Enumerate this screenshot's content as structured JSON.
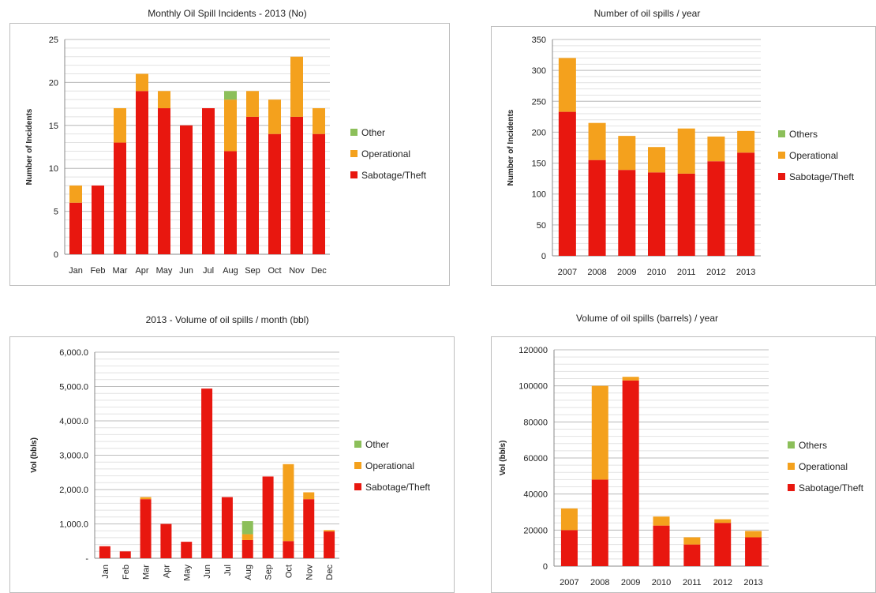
{
  "colors": {
    "sabotage": "#e8170f",
    "operational": "#f4a11d",
    "other": "#8cbf5a",
    "grid": "#d0d0d0"
  },
  "chart_data": [
    {
      "type": "bar",
      "stacked": true,
      "title": "Monthly Oil Spill Incidents - 2013 (No)",
      "ylabel": "Number of Incidents",
      "xlabel": "",
      "ylim": [
        0,
        25
      ],
      "yticks": [
        0,
        5,
        10,
        15,
        20,
        25
      ],
      "ytick_labels": [
        "0",
        "5",
        "10",
        "15",
        "20",
        "25"
      ],
      "categories": [
        "Jan",
        "Feb",
        "Mar",
        "Apr",
        "May",
        "Jun",
        "Jul",
        "Aug",
        "Sep",
        "Oct",
        "Nov",
        "Dec"
      ],
      "rotate_xticks": false,
      "legend": [
        "Other",
        "Operational",
        "Sabotage/Theft"
      ],
      "series": [
        {
          "name": "Sabotage/Theft",
          "values": [
            6,
            8,
            13,
            19,
            17,
            15,
            17,
            12,
            16,
            14,
            16,
            14
          ]
        },
        {
          "name": "Operational",
          "values": [
            2,
            0,
            4,
            2,
            2,
            0,
            0,
            6,
            3,
            4,
            7,
            3
          ]
        },
        {
          "name": "Other",
          "values": [
            0,
            0,
            0,
            0,
            0,
            0,
            0,
            1,
            0,
            0,
            0,
            0
          ]
        }
      ]
    },
    {
      "type": "bar",
      "stacked": true,
      "title": "Number of oil spills / year",
      "ylabel": "Number of Incidents",
      "xlabel": "",
      "ylim": [
        0,
        350
      ],
      "yticks": [
        0,
        50,
        100,
        150,
        200,
        250,
        300,
        350
      ],
      "ytick_labels": [
        "0",
        "50",
        "100",
        "150",
        "200",
        "250",
        "300",
        "350"
      ],
      "categories": [
        "2007",
        "2008",
        "2009",
        "2010",
        "2011",
        "2012",
        "2013"
      ],
      "rotate_xticks": false,
      "legend": [
        "Others",
        "Operational",
        "Sabotage/Theft"
      ],
      "series": [
        {
          "name": "Sabotage/Theft",
          "values": [
            233,
            155,
            139,
            135,
            133,
            153,
            167
          ]
        },
        {
          "name": "Operational",
          "values": [
            87,
            60,
            55,
            41,
            73,
            40,
            35
          ]
        },
        {
          "name": "Others",
          "values": [
            0,
            0,
            0,
            0,
            0,
            0,
            0
          ]
        }
      ]
    },
    {
      "type": "bar",
      "stacked": true,
      "title": "2013 - Volume of oil spills / month (bbl)",
      "ylabel": "Vol (bbls)",
      "xlabel": "",
      "ylim": [
        0,
        6000
      ],
      "yticks": [
        0,
        1000,
        2000,
        3000,
        4000,
        5000,
        6000
      ],
      "ytick_labels": [
        "-",
        "1,000.0",
        "2,000.0",
        "3,000.0",
        "4,000.0",
        "5,000.0",
        "6,000.0"
      ],
      "categories": [
        "Jan",
        "Feb",
        "Mar",
        "Apr",
        "May",
        "Jun",
        "Jul",
        "Aug",
        "Sep",
        "Oct",
        "Nov",
        "Dec"
      ],
      "rotate_xticks": true,
      "legend": [
        "Other",
        "Operational",
        "Sabotage/Theft"
      ],
      "series": [
        {
          "name": "Sabotage/Theft",
          "values": [
            350,
            200,
            1720,
            1000,
            480,
            4940,
            1780,
            530,
            2380,
            500,
            1720,
            780
          ]
        },
        {
          "name": "Operational",
          "values": [
            0,
            0,
            60,
            0,
            0,
            0,
            0,
            170,
            0,
            2240,
            200,
            40
          ]
        },
        {
          "name": "Other",
          "values": [
            0,
            0,
            0,
            0,
            0,
            0,
            0,
            380,
            0,
            0,
            0,
            0
          ]
        }
      ]
    },
    {
      "type": "bar",
      "stacked": true,
      "title": "Volume of oil spills (barrels) / year",
      "ylabel": "Vol (bbls)",
      "xlabel": "",
      "ylim": [
        0,
        120000
      ],
      "yticks": [
        0,
        20000,
        40000,
        60000,
        80000,
        100000,
        120000
      ],
      "ytick_labels": [
        "0",
        "20000",
        "40000",
        "60000",
        "80000",
        "100000",
        "120000"
      ],
      "categories": [
        "2007",
        "2008",
        "2009",
        "2010",
        "2011",
        "2012",
        "2013"
      ],
      "rotate_xticks": false,
      "legend": [
        "Others",
        "Operational",
        "Sabotage/Theft"
      ],
      "series": [
        {
          "name": "Sabotage/Theft",
          "values": [
            20000,
            48000,
            103000,
            22500,
            12000,
            24000,
            16000
          ]
        },
        {
          "name": "Operational",
          "values": [
            12000,
            52000,
            2000,
            5000,
            4000,
            2000,
            3500
          ]
        },
        {
          "name": "Others",
          "values": [
            0,
            0,
            0,
            0,
            0,
            0,
            0
          ]
        }
      ]
    }
  ]
}
